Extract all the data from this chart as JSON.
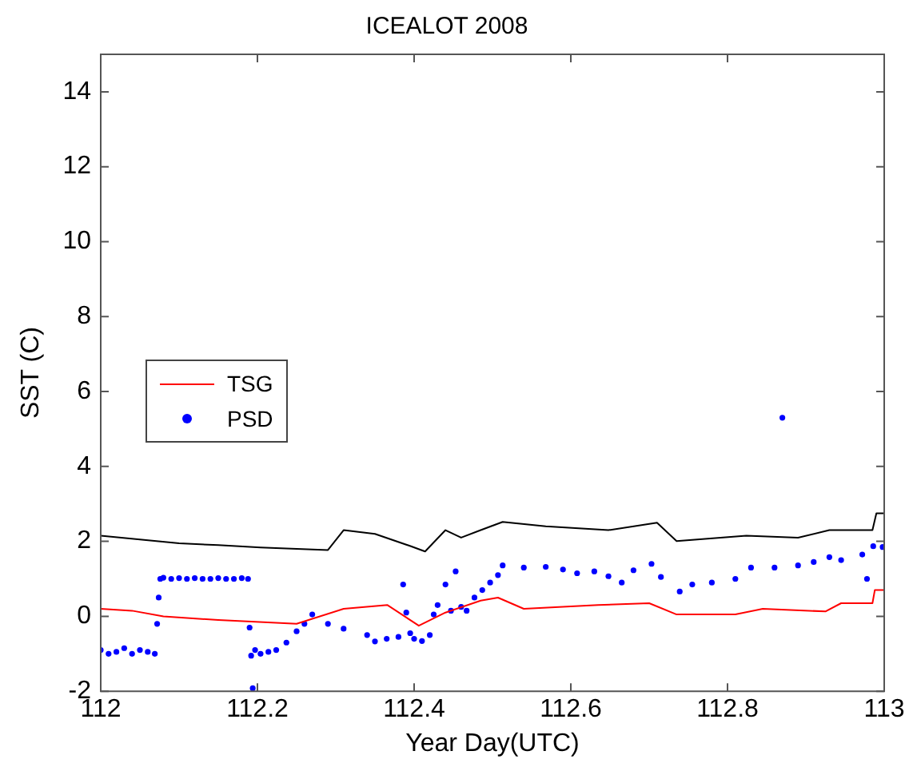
{
  "chart_data": {
    "type": "line",
    "title": "ICEALOT 2008",
    "xlabel": "Year Day(UTC)",
    "ylabel": "SST (C)",
    "xlim": [
      112,
      113
    ],
    "xticks": [
      112,
      112.2,
      112.4,
      112.6,
      112.8,
      113
    ],
    "ylim": [
      -2,
      15
    ],
    "yticks": [
      -2,
      0,
      2,
      4,
      6,
      8,
      10,
      12,
      14
    ],
    "grid": false,
    "legend": "left",
    "series": [
      {
        "color": "#000000",
        "type": "line",
        "x": [
          112,
          112.05,
          112.1,
          112.15,
          112.204,
          112.29,
          112.31,
          112.35,
          112.396,
          112.414,
          112.44,
          112.46,
          112.485,
          112.513,
          112.568,
          112.648,
          112.71,
          112.735,
          112.824,
          112.89,
          112.93,
          112.985,
          112.99,
          113
        ],
        "values": [
          2.15,
          2.05,
          1.95,
          1.9,
          1.84,
          1.77,
          2.3,
          2.2,
          1.87,
          1.73,
          2.3,
          2.1,
          2.3,
          2.52,
          2.4,
          2.3,
          2.5,
          2.01,
          2.15,
          2.1,
          2.3,
          2.3,
          2.75,
          2.75
        ]
      },
      {
        "name": "TSG",
        "color": "#ff0000",
        "type": "line",
        "x": [
          112,
          112.04,
          112.08,
          112.15,
          112.25,
          112.31,
          112.366,
          112.406,
          112.44,
          112.485,
          112.507,
          112.54,
          112.635,
          112.7,
          112.735,
          112.81,
          112.845,
          112.925,
          112.945,
          112.985,
          112.988,
          113
        ],
        "values": [
          0.2,
          0.15,
          0,
          -0.1,
          -0.2,
          0.2,
          0.3,
          -0.25,
          0.1,
          0.42,
          0.5,
          0.2,
          0.3,
          0.35,
          0.05,
          0.05,
          0.2,
          0.13,
          0.35,
          0.35,
          0.7,
          0.7
        ]
      },
      {
        "name": "PSD",
        "color": "#0000ff",
        "type": "scatter",
        "x": [
          112.0,
          112.01,
          112.02,
          112.03,
          112.04,
          112.05,
          112.06,
          112.069,
          112.072,
          112.074,
          112.076,
          112.08,
          112.09,
          112.1,
          112.11,
          112.12,
          112.13,
          112.14,
          112.15,
          112.16,
          112.17,
          112.18,
          112.188,
          112.19,
          112.192,
          112.194,
          112.197,
          112.204,
          112.214,
          112.224,
          112.237,
          112.25,
          112.26,
          112.27,
          112.29,
          112.31,
          112.34,
          112.35,
          112.365,
          112.38,
          112.386,
          112.39,
          112.395,
          112.4,
          112.41,
          112.42,
          112.425,
          112.43,
          112.44,
          112.447,
          112.453,
          112.46,
          112.467,
          112.477,
          112.487,
          112.497,
          112.507,
          112.513,
          112.54,
          112.568,
          112.59,
          112.608,
          112.63,
          112.648,
          112.665,
          112.68,
          112.703,
          112.715,
          112.739,
          112.755,
          112.78,
          112.81,
          112.83,
          112.86,
          112.87,
          112.89,
          112.91,
          112.93,
          112.945,
          112.972,
          112.978,
          112.986,
          112.998
        ],
        "values": [
          -0.9,
          -1.0,
          -0.95,
          -0.85,
          -1.0,
          -0.9,
          -0.95,
          -1.0,
          -0.2,
          0.5,
          1.0,
          1.03,
          1.0,
          1.02,
          1.0,
          1.02,
          1.0,
          1.0,
          1.02,
          1.0,
          1.0,
          1.02,
          1.0,
          -0.3,
          -1.05,
          -1.92,
          -0.9,
          -1.0,
          -0.95,
          -0.9,
          -0.7,
          -0.4,
          -0.2,
          0.05,
          -0.2,
          -0.33,
          -0.5,
          -0.67,
          -0.6,
          -0.55,
          0.85,
          0.1,
          -0.45,
          -0.6,
          -0.66,
          -0.5,
          0.05,
          0.3,
          0.85,
          0.15,
          1.2,
          0.25,
          0.15,
          0.5,
          0.7,
          0.9,
          1.1,
          1.36,
          1.3,
          1.32,
          1.25,
          1.15,
          1.2,
          1.07,
          0.9,
          1.23,
          1.4,
          1.05,
          0.66,
          0.85,
          0.9,
          1.0,
          1.3,
          1.3,
          5.3,
          1.36,
          1.45,
          1.58,
          1.5,
          1.65,
          1.0,
          1.87,
          1.85
        ]
      }
    ]
  }
}
